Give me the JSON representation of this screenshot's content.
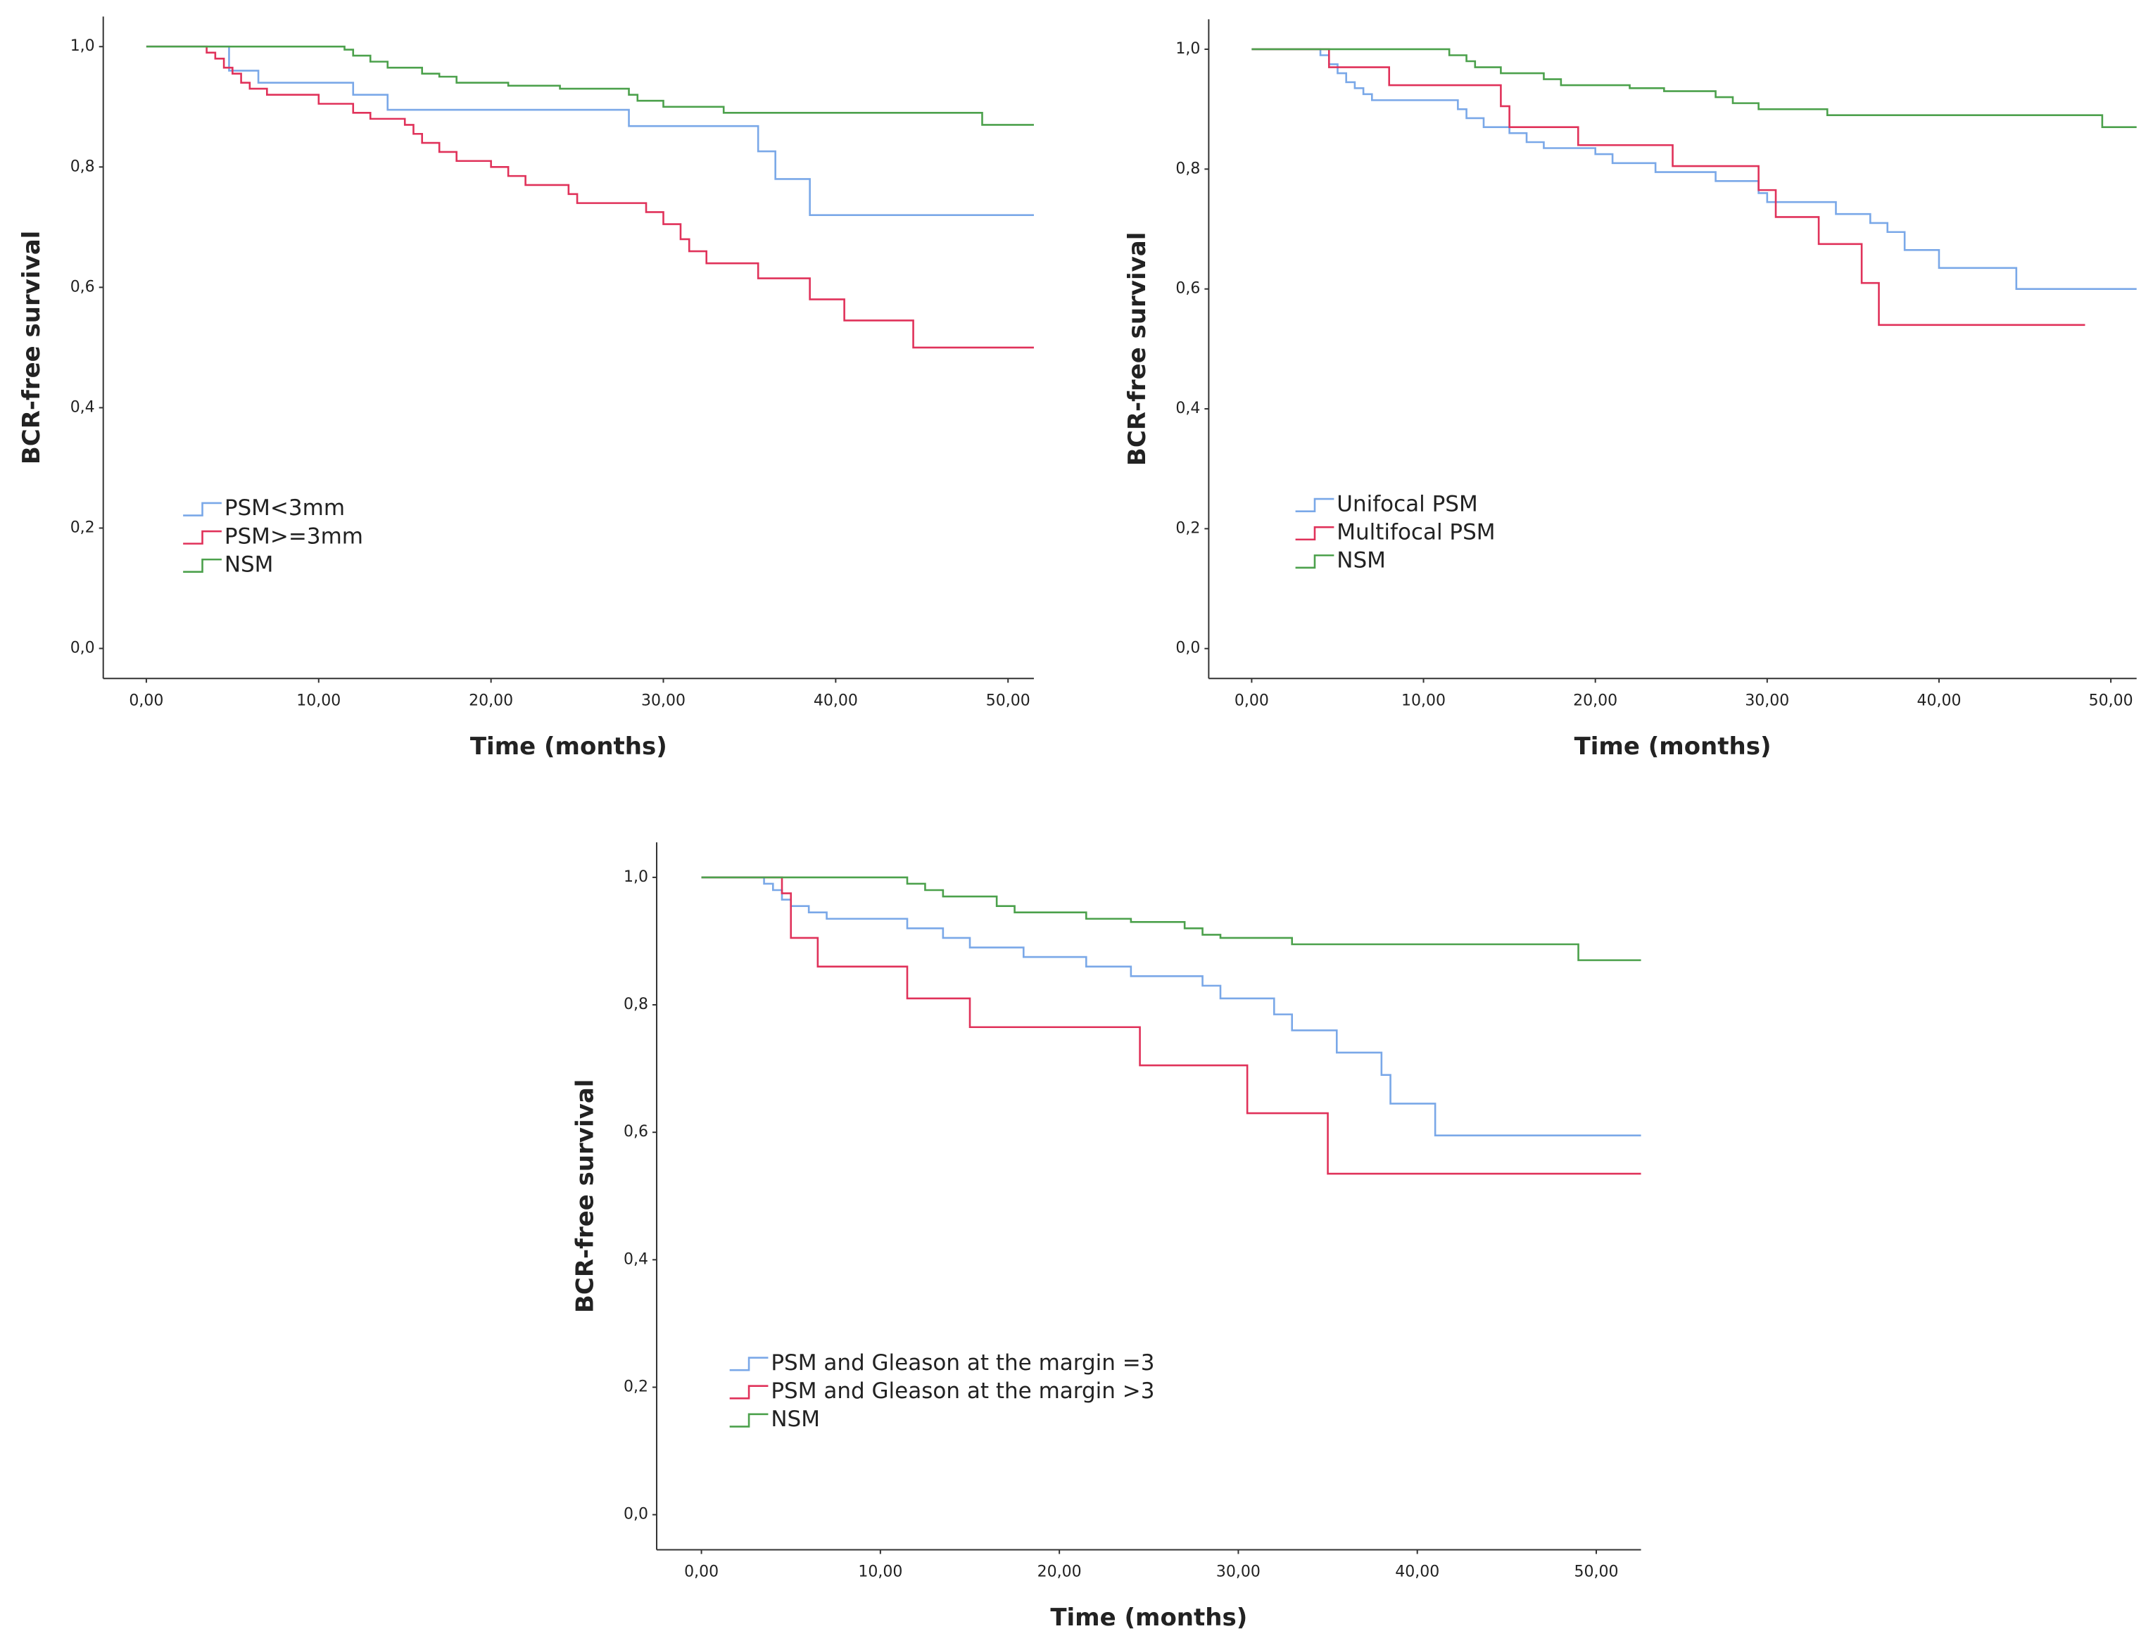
{
  "chart_data": [
    {
      "type": "step",
      "xlabel": "Time (months)",
      "ylabel": "BCR-free survival",
      "xlim": [
        -2.5,
        51.5
      ],
      "ylim": [
        -0.05,
        1.05
      ],
      "legend": "center left",
      "grid": false,
      "xticks": [
        {
          "value": 0,
          "label": "0,00"
        },
        {
          "value": 10,
          "label": "10,00"
        },
        {
          "value": 20,
          "label": "20,00"
        },
        {
          "value": 30,
          "label": "30,00"
        },
        {
          "value": 40,
          "label": "40,00"
        },
        {
          "value": 50,
          "label": "50,00"
        }
      ],
      "yticks": [
        {
          "value": 0,
          "label": "0,0"
        },
        {
          "value": 0.2,
          "label": "0,2"
        },
        {
          "value": 0.4,
          "label": "0,4"
        },
        {
          "value": 0.6,
          "label": "0,6"
        },
        {
          "value": 0.8,
          "label": "0,8"
        },
        {
          "value": 1,
          "label": "1,0"
        }
      ],
      "series": [
        {
          "name": "PSM<3mm",
          "color": "#7aa8e8",
          "x": [
            0,
            4.8,
            6.5,
            12,
            14,
            28,
            35.5,
            36.5,
            38.5,
            51.5
          ],
          "values": [
            1,
            0.96,
            0.94,
            0.92,
            0.895,
            0.868,
            0.826,
            0.78,
            0.72,
            0.72
          ]
        },
        {
          "name": "PSM>=3mm",
          "color": "#e0325a",
          "x": [
            0,
            3.5,
            4,
            4.5,
            5,
            5.5,
            6,
            7,
            10,
            12,
            13,
            15,
            15.5,
            16,
            17,
            18,
            20,
            21,
            22,
            24.5,
            25,
            29,
            30,
            31,
            31.5,
            32.5,
            35.5,
            38.5,
            40.5,
            44.5,
            51.5
          ],
          "values": [
            1,
            0.99,
            0.98,
            0.965,
            0.955,
            0.94,
            0.93,
            0.92,
            0.905,
            0.89,
            0.88,
            0.87,
            0.855,
            0.84,
            0.825,
            0.81,
            0.8,
            0.785,
            0.77,
            0.755,
            0.74,
            0.725,
            0.705,
            0.68,
            0.66,
            0.64,
            0.615,
            0.58,
            0.545,
            0.5,
            0.5
          ]
        },
        {
          "name": "NSM",
          "color": "#4ca14c",
          "x": [
            0,
            11.5,
            12,
            13,
            14,
            16,
            17,
            18,
            21,
            24,
            28,
            28.5,
            30,
            33.5,
            48.5,
            51.5
          ],
          "values": [
            1,
            0.995,
            0.985,
            0.975,
            0.965,
            0.955,
            0.95,
            0.94,
            0.935,
            0.93,
            0.92,
            0.91,
            0.9,
            0.89,
            0.87,
            0.87
          ]
        }
      ]
    },
    {
      "type": "step",
      "xlabel": "Time (months)",
      "ylabel": "BCR-free survival",
      "xlim": [
        -2.5,
        51.5
      ],
      "ylim": [
        -0.05,
        1.05
      ],
      "legend": "center left",
      "grid": false,
      "xticks": [
        {
          "value": 0,
          "label": "0,00"
        },
        {
          "value": 10,
          "label": "10,00"
        },
        {
          "value": 20,
          "label": "20,00"
        },
        {
          "value": 30,
          "label": "30,00"
        },
        {
          "value": 40,
          "label": "40,00"
        },
        {
          "value": 50,
          "label": "50,00"
        }
      ],
      "yticks": [
        {
          "value": 0,
          "label": "0,0"
        },
        {
          "value": 0.2,
          "label": "0,2"
        },
        {
          "value": 0.4,
          "label": "0,4"
        },
        {
          "value": 0.6,
          "label": "0,6"
        },
        {
          "value": 0.8,
          "label": "0,8"
        },
        {
          "value": 1,
          "label": "1,0"
        }
      ],
      "series": [
        {
          "name": "Unifocal PSM",
          "color": "#7aa8e8",
          "x": [
            0,
            4,
            4.5,
            5,
            5.5,
            6,
            6.5,
            7,
            12,
            12.5,
            13.5,
            15,
            16,
            17,
            20,
            21,
            23.5,
            27,
            29.5,
            30,
            34,
            36,
            37,
            38,
            40,
            44.5,
            51.5
          ],
          "values": [
            1,
            0.99,
            0.975,
            0.96,
            0.945,
            0.935,
            0.925,
            0.915,
            0.9,
            0.885,
            0.87,
            0.86,
            0.845,
            0.835,
            0.825,
            0.81,
            0.795,
            0.78,
            0.76,
            0.745,
            0.725,
            0.71,
            0.695,
            0.665,
            0.635,
            0.6,
            0.6
          ]
        },
        {
          "name": "Multifocal PSM",
          "color": "#e0325a",
          "x": [
            0,
            4.5,
            8,
            14.5,
            15,
            19,
            24.5,
            29.5,
            30.5,
            33,
            35.5,
            36.5,
            48.5
          ],
          "values": [
            1,
            0.97,
            0.94,
            0.905,
            0.87,
            0.84,
            0.805,
            0.765,
            0.72,
            0.675,
            0.61,
            0.54,
            0.54
          ]
        },
        {
          "name": "NSM",
          "color": "#4ca14c",
          "x": [
            0,
            11.5,
            12.5,
            13,
            14.5,
            17,
            18,
            22,
            24,
            27,
            28,
            29.5,
            33.5,
            49.5,
            51.5
          ],
          "values": [
            1,
            0.99,
            0.98,
            0.97,
            0.96,
            0.95,
            0.94,
            0.935,
            0.93,
            0.92,
            0.91,
            0.9,
            0.89,
            0.87,
            0.87
          ]
        }
      ]
    },
    {
      "type": "step",
      "xlabel": "Time (months)",
      "ylabel": "BCR-free survival",
      "xlim": [
        -2.5,
        52.5
      ],
      "ylim": [
        -0.055,
        1.055
      ],
      "legend": "lower left",
      "grid": false,
      "xticks": [
        {
          "value": 0,
          "label": "0,00"
        },
        {
          "value": 10,
          "label": "10,00"
        },
        {
          "value": 20,
          "label": "20,00"
        },
        {
          "value": 30,
          "label": "30,00"
        },
        {
          "value": 40,
          "label": "40,00"
        },
        {
          "value": 50,
          "label": "50,00"
        }
      ],
      "yticks": [
        {
          "value": 0,
          "label": "0,0"
        },
        {
          "value": 0.2,
          "label": "0,2"
        },
        {
          "value": 0.4,
          "label": "0,4"
        },
        {
          "value": 0.6,
          "label": "0,6"
        },
        {
          "value": 0.8,
          "label": "0,8"
        },
        {
          "value": 1,
          "label": "1,0"
        }
      ],
      "series": [
        {
          "name": "PSM and Gleason at the margin =3",
          "color": "#7aa8e8",
          "x": [
            0,
            3.5,
            4,
            4.5,
            5,
            6,
            7,
            11.5,
            13.5,
            15,
            18,
            21.5,
            24,
            28,
            29,
            32,
            33,
            35.5,
            38,
            38.5,
            41,
            52.5
          ],
          "values": [
            1,
            0.99,
            0.98,
            0.965,
            0.955,
            0.945,
            0.935,
            0.92,
            0.905,
            0.89,
            0.875,
            0.86,
            0.845,
            0.83,
            0.81,
            0.785,
            0.76,
            0.725,
            0.69,
            0.645,
            0.595,
            0.595
          ]
        },
        {
          "name": "PSM and Gleason at the margin >3",
          "color": "#e0325a",
          "x": [
            0,
            4.5,
            5,
            6.5,
            11.5,
            15,
            24.5,
            30.5,
            35,
            52.5
          ],
          "values": [
            1,
            0.975,
            0.905,
            0.86,
            0.81,
            0.765,
            0.705,
            0.63,
            0.535,
            0.535
          ]
        },
        {
          "name": "NSM",
          "color": "#4ca14c",
          "x": [
            0,
            11.5,
            12.5,
            13.5,
            16.5,
            17.5,
            21.5,
            24,
            27,
            28,
            29,
            33,
            49,
            52.5
          ],
          "values": [
            1,
            0.99,
            0.98,
            0.97,
            0.955,
            0.945,
            0.935,
            0.93,
            0.92,
            0.91,
            0.905,
            0.895,
            0.87,
            0.87
          ]
        }
      ]
    }
  ]
}
